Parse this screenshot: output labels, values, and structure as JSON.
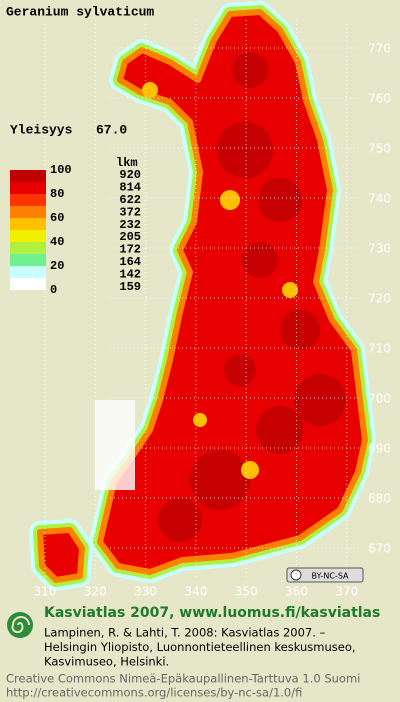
{
  "title": "Geranium sylvaticum",
  "frequency": {
    "label": "Yleisyys",
    "value": "67.0"
  },
  "legend": {
    "scale": [
      "100",
      "80",
      "60",
      "40",
      "20",
      "0"
    ],
    "count_header": "lkm",
    "classes": [
      {
        "color": "#c00000",
        "count": 920
      },
      {
        "color": "#e80000",
        "count": 814
      },
      {
        "color": "#ff3300",
        "count": 622
      },
      {
        "color": "#ff8000",
        "count": 372
      },
      {
        "color": "#ffc000",
        "count": 232
      },
      {
        "color": "#f0f000",
        "count": 205
      },
      {
        "color": "#b0f040",
        "count": 172
      },
      {
        "color": "#70f090",
        "count": 164
      },
      {
        "color": "#c8ffff",
        "count": 142
      },
      {
        "color": "#ffffff",
        "count": 159
      }
    ]
  },
  "grid": {
    "y_labels": [
      "770",
      "760",
      "750",
      "740",
      "730",
      "720",
      "710",
      "700",
      "690",
      "680",
      "670"
    ],
    "x_labels": [
      "310",
      "320",
      "330",
      "340",
      "350",
      "360",
      "370"
    ]
  },
  "license_badge": "BY-NC-SA",
  "footer": {
    "heading": "Kasviatlas 2007, www.luomus.fi/kasviatlas",
    "citation": [
      "Lampinen, R. & Lahti, T. 2008: Kasviatlas 2007. –",
      "Helsingin Yliopisto, Luonnontieteellinen keskusmuseo,",
      "Kasvimuseo, Helsinki."
    ],
    "license": [
      "Creative Commons Nimeä-Epäkaupallinen-Tarttuva 1.0 Suomi",
      "http://creativecommons.org/licenses/by-nc-sa/1.0/fi"
    ]
  }
}
